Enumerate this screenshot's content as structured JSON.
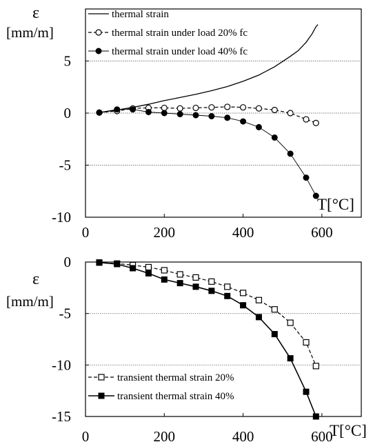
{
  "chart_data": [
    {
      "type": "line",
      "title": "",
      "ylabel": "ε",
      "yunit": "[mm/m]",
      "xlabel": "T[°C]",
      "xlim": [
        0,
        700
      ],
      "ylim": [
        -10,
        10
      ],
      "x_ticks": [
        "0",
        "200",
        "400",
        "600"
      ],
      "y_ticks": [
        "5",
        "0",
        "-5",
        "-10"
      ],
      "grid": "dotted horizontal lines at y = 5, 0, -5",
      "legend_position": "top-left",
      "series": [
        {
          "name": "thermal strain",
          "style": "solid, no markers",
          "x": [
            35,
            80,
            120,
            160,
            200,
            240,
            280,
            320,
            360,
            400,
            440,
            480,
            500,
            520,
            540,
            560,
            575,
            585,
            590
          ],
          "y": [
            0.05,
            0.3,
            0.55,
            0.85,
            1.2,
            1.5,
            1.8,
            2.15,
            2.55,
            3.05,
            3.65,
            4.45,
            4.95,
            5.45,
            6.0,
            6.8,
            7.6,
            8.3,
            8.5
          ]
        },
        {
          "name": "thermal strain under load 20% fc",
          "style": "dashed, open circles",
          "x": [
            35,
            80,
            120,
            160,
            200,
            240,
            280,
            320,
            360,
            400,
            440,
            480,
            520,
            560,
            585
          ],
          "y": [
            0.05,
            0.2,
            0.45,
            0.5,
            0.5,
            0.45,
            0.5,
            0.55,
            0.6,
            0.55,
            0.45,
            0.3,
            0.0,
            -0.6,
            -0.95
          ]
        },
        {
          "name": "thermal strain under load 40% fc",
          "style": "thin solid, filled circles",
          "x": [
            35,
            80,
            120,
            160,
            200,
            240,
            280,
            320,
            360,
            400,
            440,
            480,
            520,
            560,
            585
          ],
          "y": [
            0.05,
            0.35,
            0.35,
            0.1,
            0.0,
            -0.1,
            -0.2,
            -0.3,
            -0.45,
            -0.8,
            -1.35,
            -2.35,
            -3.9,
            -6.2,
            -7.95
          ]
        }
      ]
    },
    {
      "type": "line",
      "title": "",
      "ylabel": "ε",
      "yunit": "[mm/m]",
      "xlabel": "T[°C]",
      "xlim": [
        0,
        700
      ],
      "ylim": [
        -15,
        0
      ],
      "x_ticks": [
        "0",
        "200",
        "400",
        "600"
      ],
      "y_ticks": [
        "0",
        "-5",
        "-10",
        "-15"
      ],
      "grid": "dotted horizontal lines at y = -5, -10",
      "legend_position": "bottom-left",
      "series": [
        {
          "name": "transient thermal strain 20%",
          "style": "dashed, open squares",
          "x": [
            35,
            80,
            120,
            160,
            200,
            240,
            280,
            320,
            360,
            400,
            440,
            480,
            520,
            560,
            585
          ],
          "y": [
            -0.05,
            -0.15,
            -0.3,
            -0.5,
            -0.8,
            -1.2,
            -1.5,
            -1.9,
            -2.4,
            -3.0,
            -3.7,
            -4.6,
            -5.9,
            -7.8,
            -10.1
          ]
        },
        {
          "name": "transient thermal strain 40%",
          "style": "solid, filled squares",
          "x": [
            35,
            80,
            120,
            160,
            200,
            240,
            280,
            320,
            360,
            400,
            440,
            480,
            520,
            560,
            585
          ],
          "y": [
            -0.05,
            -0.2,
            -0.6,
            -1.1,
            -1.7,
            -2.05,
            -2.4,
            -2.8,
            -3.3,
            -4.2,
            -5.35,
            -7.0,
            -9.35,
            -12.6,
            -15.0
          ]
        }
      ]
    }
  ]
}
